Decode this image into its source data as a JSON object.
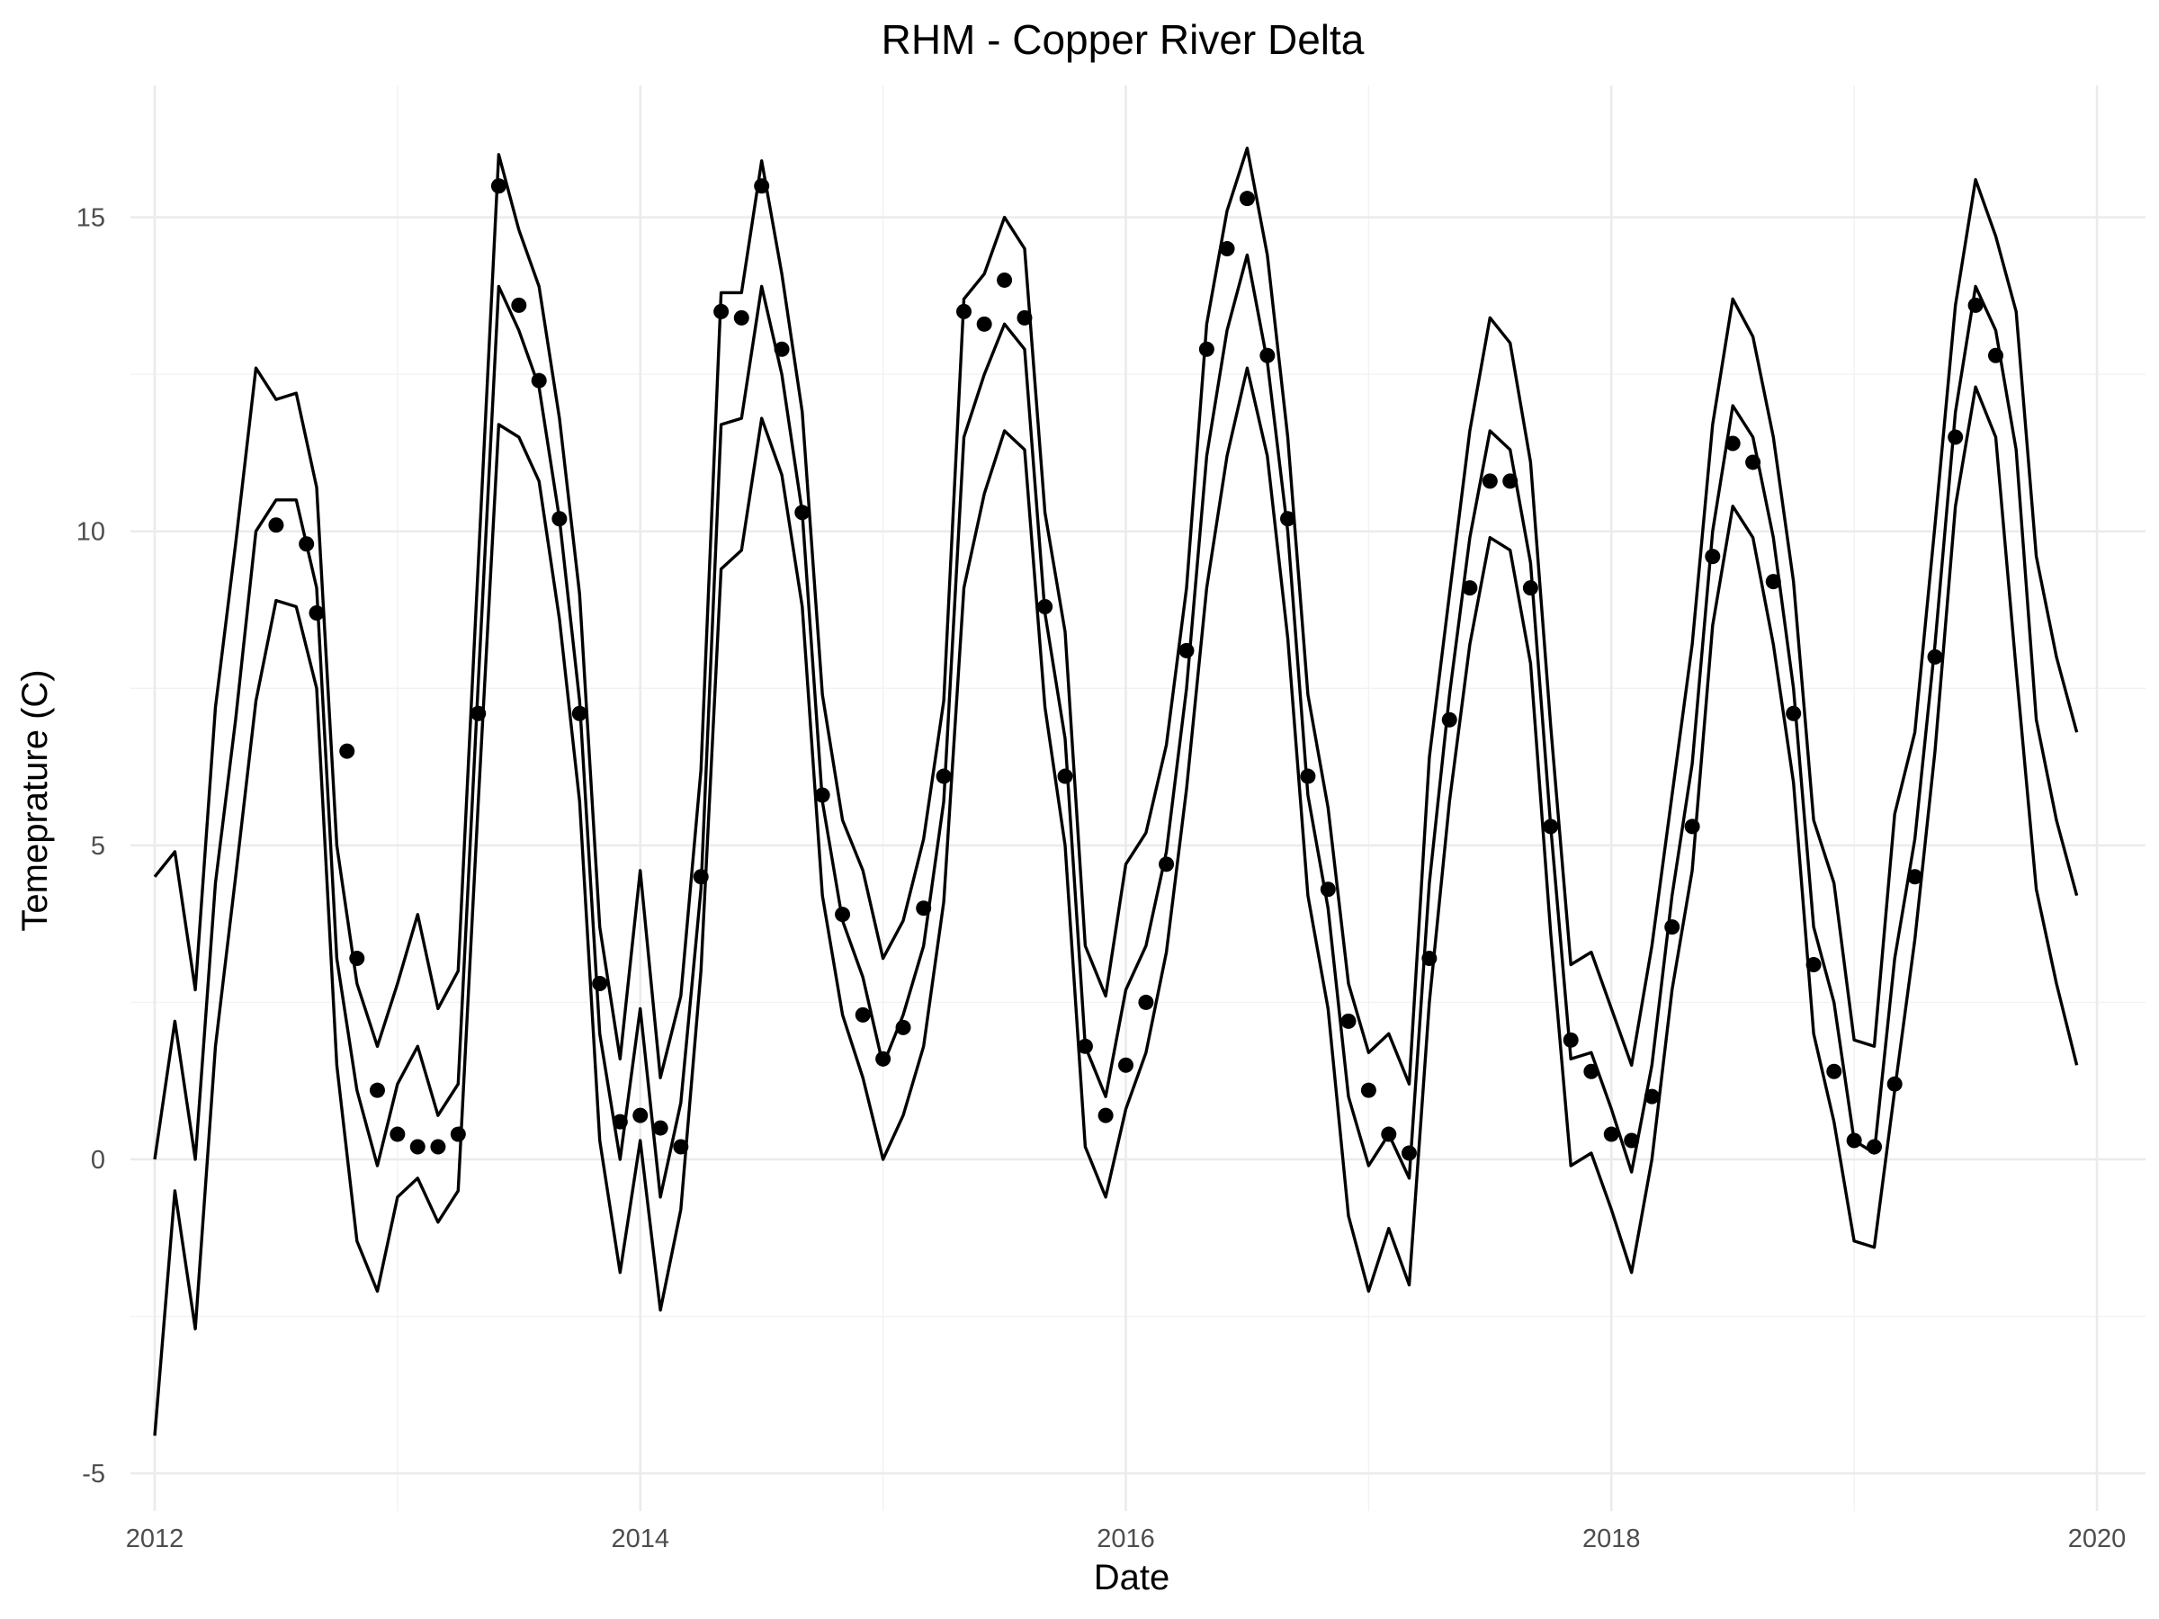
{
  "chart_data": {
    "type": "line",
    "title": "RHM - Copper River Delta",
    "xlabel": "Date",
    "ylabel": "Temeprature (C)",
    "xlim": [
      2011.9,
      2020.2
    ],
    "ylim": [
      -5.6,
      17.1
    ],
    "x_ticks": [
      2012,
      2014,
      2016,
      2018,
      2020
    ],
    "x_tick_labels": [
      "2012",
      "2014",
      "2016",
      "2018",
      "2020"
    ],
    "y_ticks": [
      -5,
      0,
      5,
      10,
      15
    ],
    "y_tick_labels": [
      "-5",
      "0",
      "5",
      "10",
      "15"
    ],
    "grid": true,
    "legend": "none",
    "series_x": [
      2012.0,
      2012.083,
      2012.167,
      2012.25,
      2012.333,
      2012.417,
      2012.5,
      2012.583,
      2012.667,
      2012.75,
      2012.833,
      2012.917,
      2013.0,
      2013.083,
      2013.167,
      2013.25,
      2013.333,
      2013.417,
      2013.5,
      2013.583,
      2013.667,
      2013.75,
      2013.833,
      2013.917,
      2014.0,
      2014.083,
      2014.167,
      2014.25,
      2014.333,
      2014.417,
      2014.5,
      2014.583,
      2014.667,
      2014.75,
      2014.833,
      2014.917,
      2015.0,
      2015.083,
      2015.167,
      2015.25,
      2015.333,
      2015.417,
      2015.5,
      2015.583,
      2015.667,
      2015.75,
      2015.833,
      2015.917,
      2016.0,
      2016.083,
      2016.167,
      2016.25,
      2016.333,
      2016.417,
      2016.5,
      2016.583,
      2016.667,
      2016.75,
      2016.833,
      2016.917,
      2017.0,
      2017.083,
      2017.167,
      2017.25,
      2017.333,
      2017.417,
      2017.5,
      2017.583,
      2017.667,
      2017.75,
      2017.833,
      2017.917,
      2018.0,
      2018.083,
      2018.167,
      2018.25,
      2018.333,
      2018.417,
      2018.5,
      2018.583,
      2018.667,
      2018.75,
      2018.833,
      2018.917,
      2019.0,
      2019.083,
      2019.167,
      2019.25,
      2019.333,
      2019.417,
      2019.5,
      2019.583,
      2019.667,
      2019.75,
      2019.833,
      2019.917
    ],
    "series": [
      {
        "values": [
          4.5,
          4.9,
          2.7,
          7.2,
          9.8,
          12.6,
          12.1,
          12.2,
          10.7,
          5.0,
          2.8,
          1.8,
          2.8,
          3.9,
          2.4,
          3.0,
          9.5,
          16.0,
          14.8,
          13.9,
          11.8,
          9.0,
          3.7,
          1.6,
          4.6,
          1.3,
          2.6,
          6.2,
          13.8,
          13.8,
          15.9,
          14.1,
          11.9,
          7.4,
          5.4,
          4.6,
          3.2,
          3.8,
          5.1,
          7.3,
          13.7,
          14.1,
          15.0,
          14.5,
          10.3,
          8.4,
          3.4,
          2.6,
          4.7,
          5.2,
          6.6,
          9.1,
          13.3,
          15.1,
          16.1,
          14.4,
          11.5,
          7.4,
          5.6,
          2.8,
          1.7,
          2.0,
          1.2,
          6.4,
          9.0,
          11.6,
          13.4,
          13.0,
          11.1,
          6.9,
          3.1,
          3.3,
          2.4,
          1.5,
          3.4,
          5.8,
          8.2,
          11.7,
          13.7,
          13.1,
          11.5,
          9.2,
          5.4,
          4.4,
          1.9,
          1.8,
          5.5,
          6.8,
          10.1,
          13.6,
          15.6,
          14.7,
          13.5,
          9.6,
          8.0,
          6.8
        ]
      },
      {
        "values": [
          0.0,
          2.2,
          0.0,
          4.4,
          7.0,
          10.0,
          10.5,
          10.5,
          9.1,
          3.2,
          1.1,
          -0.1,
          1.2,
          1.8,
          0.7,
          1.2,
          7.6,
          13.9,
          13.2,
          12.3,
          10.2,
          7.3,
          2.0,
          0.0,
          2.4,
          -0.6,
          0.9,
          4.3,
          11.7,
          11.8,
          13.9,
          12.5,
          10.3,
          5.7,
          3.8,
          2.9,
          1.5,
          2.3,
          3.4,
          5.7,
          11.5,
          12.5,
          13.3,
          12.9,
          8.7,
          6.7,
          1.8,
          1.0,
          2.7,
          3.4,
          4.9,
          7.5,
          11.2,
          13.2,
          14.4,
          12.7,
          10.0,
          5.8,
          4.0,
          1.0,
          -0.1,
          0.4,
          -0.3,
          4.4,
          7.4,
          9.9,
          11.6,
          11.3,
          9.5,
          5.3,
          1.6,
          1.7,
          0.8,
          -0.2,
          1.5,
          4.2,
          6.3,
          10.0,
          12.0,
          11.5,
          9.9,
          7.5,
          3.7,
          2.5,
          0.3,
          0.1,
          3.2,
          5.1,
          8.2,
          11.9,
          13.9,
          13.2,
          11.3,
          7.0,
          5.4,
          4.2
        ]
      },
      {
        "values": [
          -4.4,
          -0.5,
          -2.7,
          1.8,
          4.5,
          7.3,
          8.9,
          8.8,
          7.5,
          1.5,
          -1.3,
          -2.1,
          -0.6,
          -0.3,
          -1.0,
          -0.5,
          5.7,
          11.7,
          11.5,
          10.8,
          8.6,
          5.7,
          0.3,
          -1.8,
          0.3,
          -2.4,
          -0.8,
          3.0,
          9.4,
          9.7,
          11.8,
          10.9,
          8.8,
          4.2,
          2.3,
          1.3,
          0.0,
          0.7,
          1.8,
          4.1,
          9.1,
          10.6,
          11.6,
          11.3,
          7.2,
          5.0,
          0.2,
          -0.6,
          0.8,
          1.7,
          3.3,
          5.9,
          9.1,
          11.2,
          12.6,
          11.2,
          8.3,
          4.2,
          2.4,
          -0.9,
          -2.1,
          -1.1,
          -2.0,
          2.5,
          5.7,
          8.2,
          9.9,
          9.7,
          7.9,
          3.6,
          -0.1,
          0.1,
          -0.8,
          -1.8,
          0.0,
          2.7,
          4.6,
          8.5,
          10.4,
          9.9,
          8.2,
          6.0,
          2.0,
          0.6,
          -1.3,
          -1.4,
          1.1,
          3.5,
          6.5,
          10.4,
          12.3,
          11.5,
          7.8,
          4.3,
          2.8,
          1.5
        ]
      }
    ],
    "points": {
      "x": [
        2012.5,
        2012.625,
        2012.667,
        2012.792,
        2012.833,
        2012.917,
        2013.0,
        2013.083,
        2013.167,
        2013.25,
        2013.333,
        2013.417,
        2013.5,
        2013.583,
        2013.667,
        2013.75,
        2013.833,
        2013.917,
        2014.0,
        2014.083,
        2014.167,
        2014.25,
        2014.333,
        2014.417,
        2014.5,
        2014.583,
        2014.667,
        2014.75,
        2014.833,
        2014.917,
        2015.0,
        2015.083,
        2015.167,
        2015.25,
        2015.333,
        2015.417,
        2015.5,
        2015.583,
        2015.667,
        2015.75,
        2015.833,
        2015.917,
        2016.0,
        2016.083,
        2016.167,
        2016.25,
        2016.333,
        2016.417,
        2016.5,
        2016.583,
        2016.667,
        2016.75,
        2016.833,
        2016.917,
        2017.0,
        2017.083,
        2017.167,
        2017.25,
        2017.333,
        2017.417,
        2017.5,
        2017.583,
        2017.667,
        2017.75,
        2017.833,
        2017.917,
        2018.0,
        2018.083,
        2018.167,
        2018.25,
        2018.333,
        2018.417,
        2018.5,
        2018.583,
        2018.667,
        2018.75,
        2018.833,
        2018.917,
        2019.0,
        2019.083,
        2019.167,
        2019.25,
        2019.333,
        2019.417,
        2019.5,
        2019.583
      ],
      "y": [
        10.1,
        9.8,
        8.7,
        6.5,
        3.2,
        1.1,
        0.4,
        0.2,
        0.2,
        0.4,
        7.1,
        15.5,
        13.6,
        12.4,
        10.2,
        7.1,
        2.8,
        0.6,
        0.7,
        0.5,
        0.2,
        4.5,
        13.5,
        13.4,
        15.5,
        12.9,
        10.3,
        5.8,
        3.9,
        2.3,
        1.6,
        2.1,
        4.0,
        6.1,
        13.5,
        13.3,
        14.0,
        13.4,
        8.8,
        6.1,
        1.8,
        0.7,
        1.5,
        2.5,
        4.7,
        8.1,
        12.9,
        14.5,
        15.3,
        12.8,
        10.2,
        6.1,
        4.3,
        2.2,
        1.1,
        0.4,
        0.1,
        3.2,
        7.0,
        9.1,
        10.8,
        10.8,
        9.1,
        5.3,
        1.9,
        1.4,
        0.4,
        0.3,
        1.0,
        3.7,
        5.3,
        9.6,
        11.4,
        11.1,
        9.2,
        7.1,
        3.1,
        1.4,
        0.3,
        0.2,
        1.2,
        4.5,
        8.0,
        11.5,
        13.6,
        12.8
      ]
    }
  }
}
